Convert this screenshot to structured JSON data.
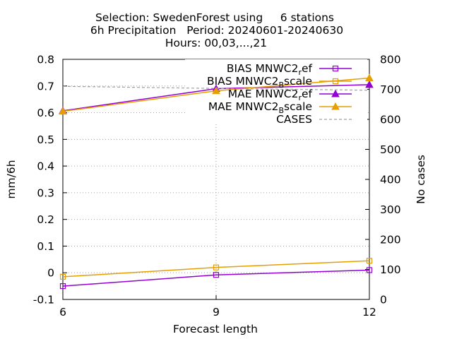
{
  "chart_data": {
    "type": "line",
    "title": [
      "Selection: SwedenForest using     6 stations",
      "6h Precipitation   Period: 20240601-20240630",
      "Hours: 00,03,...,21"
    ],
    "xlabel": "Forecast length",
    "ylabel": "mm/6h",
    "y2label": "No cases",
    "x": [
      6,
      9,
      12
    ],
    "xlim": [
      6,
      12
    ],
    "ylim": [
      -0.1,
      0.8
    ],
    "y2lim": [
      0,
      800
    ],
    "xticks": [
      "6",
      "9",
      "12"
    ],
    "yticks": [
      "-0.1",
      "0",
      "0.1",
      "0.2",
      "0.3",
      "0.4",
      "0.5",
      "0.6",
      "0.7",
      "0.8"
    ],
    "y2ticks": [
      "0",
      "100",
      "200",
      "300",
      "400",
      "500",
      "600",
      "700",
      "800"
    ],
    "grid": true,
    "legend_position": "top-right",
    "series": [
      {
        "name": "BIAS MNWC2_ref",
        "legend_main": "BIAS MNWC2",
        "legend_sub": "r",
        "legend_tail": "ef",
        "axis": "left",
        "color": "#9400d3",
        "marker": "square",
        "values": [
          -0.05,
          -0.008,
          0.01
        ]
      },
      {
        "name": "BIAS MNWC2_Bscale",
        "legend_main": "BIAS MNWC2",
        "legend_sub": "B",
        "legend_tail": "scale",
        "axis": "left",
        "color": "#e69f00",
        "marker": "square",
        "values": [
          -0.015,
          0.02,
          0.045
        ]
      },
      {
        "name": "MAE MNWC2_ref",
        "legend_main": "MAE MNWC2",
        "legend_sub": "r",
        "legend_tail": "ef",
        "axis": "left",
        "color": "#9400d3",
        "marker": "triangle",
        "values": [
          0.607,
          0.69,
          0.705
        ]
      },
      {
        "name": "MAE MNWC2_Bscale",
        "legend_main": "MAE MNWC2",
        "legend_sub": "B",
        "legend_tail": "scale",
        "axis": "left",
        "color": "#e69f00",
        "marker": "triangle",
        "values": [
          0.605,
          0.682,
          0.73
        ]
      },
      {
        "name": "CASES",
        "legend_main": "CASES",
        "legend_sub": "",
        "legend_tail": "",
        "axis": "right",
        "color": "#a0a0a0",
        "marker": "none",
        "dashed": true,
        "values": [
          710,
          703,
          697
        ]
      }
    ]
  }
}
